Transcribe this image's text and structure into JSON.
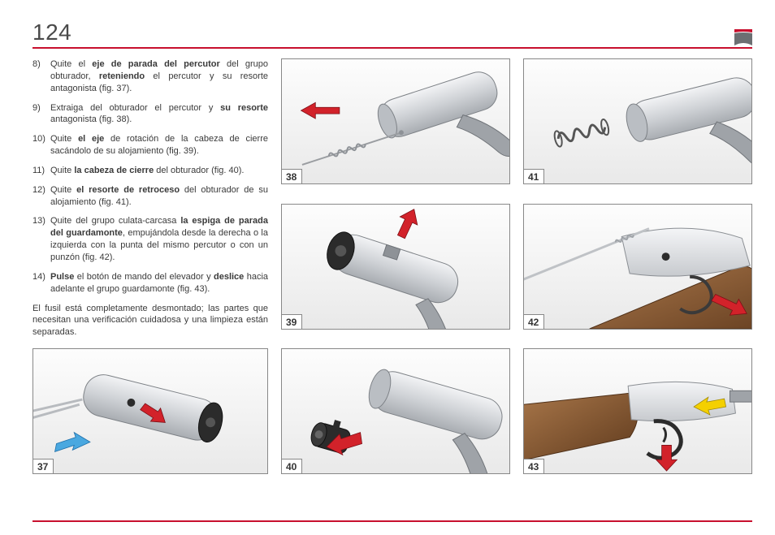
{
  "page_number": "124",
  "colors": {
    "rule": "#c8102e",
    "text": "#3a3a3a",
    "border": "#888888",
    "bg_top": "#fdfdfd",
    "bg_bot": "#e9e9e9",
    "arrow_red": "#d2222a",
    "arrow_blue": "#4aa8e0",
    "arrow_yellow": "#f4d000",
    "metal_light": "#e6e8ea",
    "metal_mid": "#c4c7ca",
    "metal_dark": "#8e9398",
    "black": "#2b2b2b",
    "wood": "#8a5a34",
    "wood_dark": "#6b4324"
  },
  "steps": [
    {
      "html": "Quite el <b>eje de parada del percutor</b> del grupo obturador, <b>reteniendo</b> el percutor y su resorte antagonista (fig. 37)."
    },
    {
      "html": "Extraiga del obturador el percutor y <b>su resorte</b> antagonista (fig. 38)."
    },
    {
      "html": "Quite <b>el eje</b> de rotación de la cabeza de cierre sacándolo de su alojamiento (fig. 39)."
    },
    {
      "html": "Quite <b>la cabeza de cierre</b> del obturador (fig. 40)."
    },
    {
      "html": "Quite <b>el resorte de retroceso</b> del obturador de su alojamiento (fig. 41)."
    },
    {
      "html": "Quite del grupo culata-carcasa <b>la espiga de parada del guardamonte</b>, empujándola desde la derecha o la izquierda con la punta del mismo percutor o con un punzón (fig. 42)."
    },
    {
      "html": "<b>Pulse</b> el botón de mando del elevador y <b>deslice</b> hacia adelante el grupo guardamonte (fig. 43)."
    }
  ],
  "closing": "El fusil está completamente desmontado; las partes que necesitan una verificación cuidadosa y una limpieza están separadas.",
  "figures": {
    "37": "37",
    "38": "38",
    "39": "39",
    "40": "40",
    "41": "41",
    "42": "42",
    "43": "43"
  }
}
